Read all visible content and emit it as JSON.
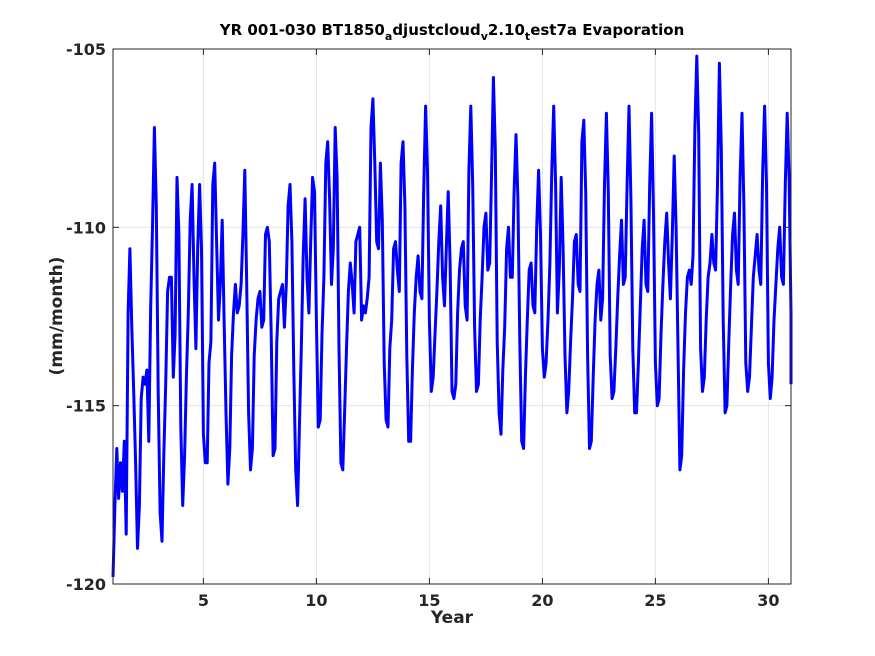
{
  "chart_data": {
    "type": "line",
    "title_parts": [
      "YR 001-030 BT1850",
      "a",
      "djustcloud",
      "v",
      "2.10",
      "t",
      "est7a Evaporation"
    ],
    "xlabel": "Year",
    "ylabel": "(mm/month)",
    "xlim": [
      1,
      31
    ],
    "ylim": [
      -120,
      -105
    ],
    "xticks": [
      5,
      10,
      15,
      20,
      25,
      30
    ],
    "yticks": [
      -120,
      -115,
      -110,
      -105
    ],
    "xtick_labels": [
      "5",
      "10",
      "15",
      "20",
      "25",
      "30"
    ],
    "ytick_labels": [
      "-120",
      "-115",
      "-110",
      "-105"
    ],
    "grid": true,
    "series_color": "#0000ff",
    "series": [
      {
        "x_start": 1.0,
        "x_step": 0.08333,
        "values": [
          -119.8,
          -117.8,
          -116.2,
          -117.6,
          -116.6,
          -117.4,
          -116.0,
          -118.6,
          -112.4,
          -110.6,
          -112.8,
          -114.6,
          -116.6,
          -119.0,
          -117.8,
          -114.8,
          -114.2,
          -114.4,
          -114.0,
          -116.0,
          -112.2,
          -110.0,
          -107.2,
          -109.4,
          -114.6,
          -118.0,
          -118.8,
          -116.4,
          -114.4,
          -111.8,
          -111.4,
          -111.4,
          -114.2,
          -113.0,
          -108.6,
          -110.2,
          -115.6,
          -117.8,
          -116.4,
          -114.2,
          -112.4,
          -109.8,
          -108.8,
          -111.4,
          -113.4,
          -110.6,
          -108.8,
          -110.6,
          -115.8,
          -116.6,
          -116.6,
          -113.8,
          -113.2,
          -108.8,
          -108.2,
          -110.4,
          -112.6,
          -111.6,
          -109.8,
          -112.6,
          -115.2,
          -117.2,
          -116.2,
          -113.6,
          -112.4,
          -111.6,
          -112.4,
          -112.2,
          -111.6,
          -110.2,
          -108.4,
          -111.6,
          -115.2,
          -116.8,
          -116.2,
          -113.6,
          -112.6,
          -112.0,
          -111.8,
          -112.8,
          -112.6,
          -110.2,
          -110.0,
          -110.4,
          -113.0,
          -116.4,
          -116.2,
          -113.2,
          -112.0,
          -111.8,
          -111.6,
          -112.8,
          -111.6,
          -109.4,
          -108.8,
          -110.4,
          -114.0,
          -116.8,
          -117.8,
          -115.6,
          -113.4,
          -110.8,
          -109.2,
          -111.4,
          -112.4,
          -110.4,
          -108.6,
          -109.0,
          -112.6,
          -115.6,
          -115.4,
          -113.0,
          -111.4,
          -108.2,
          -107.6,
          -109.2,
          -111.6,
          -110.6,
          -107.2,
          -108.6,
          -113.4,
          -116.6,
          -116.8,
          -115.2,
          -113.4,
          -111.8,
          -111.0,
          -111.6,
          -112.4,
          -110.4,
          -110.2,
          -110.0,
          -112.6,
          -112.2,
          -112.4,
          -112.0,
          -111.4,
          -107.2,
          -106.4,
          -108.2,
          -110.4,
          -110.6,
          -108.2,
          -109.8,
          -113.8,
          -115.4,
          -115.6,
          -113.4,
          -112.6,
          -110.6,
          -110.4,
          -111.2,
          -111.8,
          -108.2,
          -107.6,
          -109.4,
          -113.6,
          -116.0,
          -116.0,
          -114.0,
          -112.4,
          -111.4,
          -110.8,
          -111.8,
          -112.0,
          -109.0,
          -106.6,
          -108.4,
          -112.6,
          -114.6,
          -114.2,
          -113.0,
          -111.8,
          -110.4,
          -109.4,
          -111.4,
          -112.2,
          -110.6,
          -109.0,
          -111.0,
          -114.6,
          -114.8,
          -114.4,
          -112.4,
          -111.2,
          -110.6,
          -110.4,
          -112.2,
          -112.6,
          -108.4,
          -106.6,
          -108.8,
          -112.8,
          -114.6,
          -114.4,
          -112.6,
          -111.4,
          -110.0,
          -109.6,
          -111.2,
          -111.0,
          -108.6,
          -105.8,
          -107.8,
          -113.2,
          -115.2,
          -115.8,
          -114.0,
          -112.8,
          -110.6,
          -110.0,
          -111.4,
          -111.4,
          -109.0,
          -107.4,
          -109.2,
          -113.2,
          -116.0,
          -116.2,
          -114.2,
          -112.6,
          -111.2,
          -111.0,
          -112.2,
          -112.4,
          -110.0,
          -108.4,
          -110.2,
          -113.4,
          -114.2,
          -113.8,
          -112.6,
          -111.0,
          -108.4,
          -106.6,
          -108.8,
          -112.4,
          -111.2,
          -108.6,
          -110.6,
          -113.6,
          -115.2,
          -114.6,
          -113.2,
          -112.0,
          -110.4,
          -110.2,
          -111.6,
          -111.8,
          -107.6,
          -107.0,
          -109.0,
          -113.6,
          -116.2,
          -116.0,
          -114.2,
          -112.6,
          -111.6,
          -111.2,
          -112.6,
          -112.0,
          -108.8,
          -106.8,
          -109.0,
          -113.6,
          -114.8,
          -114.6,
          -113.4,
          -112.0,
          -110.8,
          -109.8,
          -111.6,
          -111.4,
          -108.8,
          -106.6,
          -109.2,
          -113.4,
          -115.2,
          -115.2,
          -113.8,
          -112.2,
          -110.6,
          -109.8,
          -111.6,
          -111.8,
          -108.8,
          -106.8,
          -109.6,
          -113.8,
          -115.0,
          -114.8,
          -113.0,
          -111.6,
          -110.4,
          -109.6,
          -111.0,
          -112.0,
          -110.2,
          -108.0,
          -110.0,
          -113.4,
          -116.8,
          -116.4,
          -114.0,
          -112.4,
          -111.4,
          -111.2,
          -111.6,
          -110.8,
          -107.2,
          -105.2,
          -107.4,
          -113.4,
          -114.6,
          -114.2,
          -112.6,
          -111.4,
          -111.0,
          -110.2,
          -111.0,
          -111.2,
          -108.8,
          -105.4,
          -107.8,
          -112.6,
          -115.2,
          -115.0,
          -113.2,
          -111.6,
          -110.2,
          -109.6,
          -111.2,
          -111.6,
          -108.6,
          -106.8,
          -109.4,
          -113.8,
          -114.6,
          -114.2,
          -112.8,
          -111.4,
          -110.8,
          -110.2,
          -111.2,
          -111.6,
          -108.4,
          -106.6,
          -108.8,
          -113.8,
          -114.8,
          -114.2,
          -112.6,
          -111.6,
          -110.6,
          -110.0,
          -111.4,
          -111.6,
          -108.8,
          -106.8,
          -108.6,
          -112.4,
          -114.4
        ]
      }
    ]
  }
}
